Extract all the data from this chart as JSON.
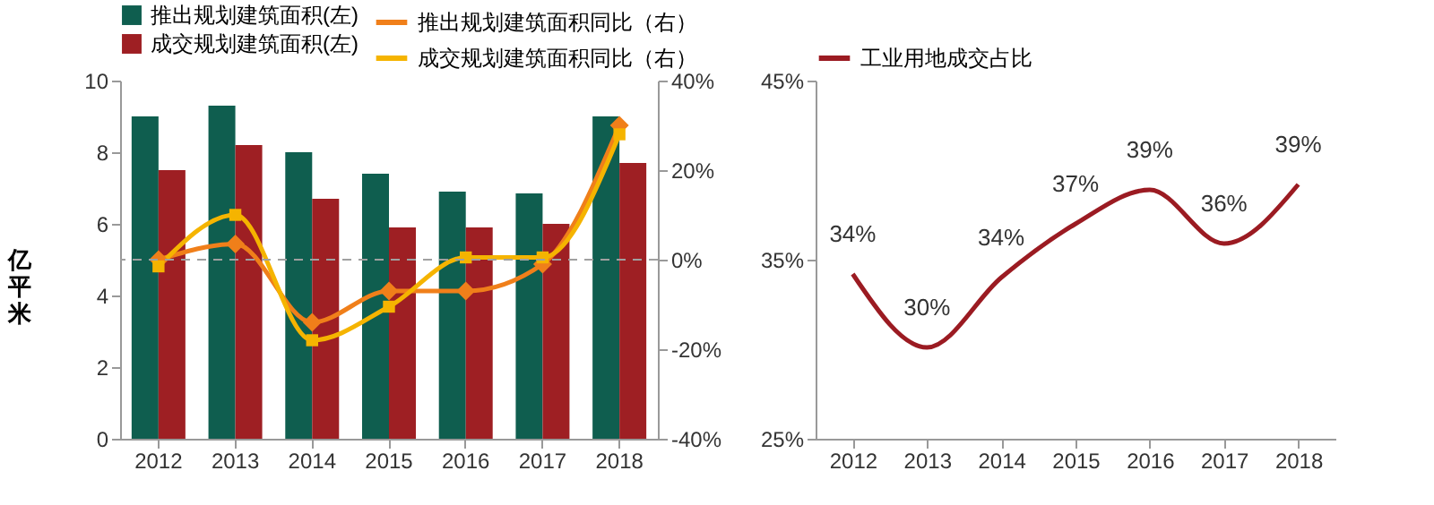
{
  "chart_data": [
    {
      "type": "bar",
      "categories": [
        "2012",
        "2013",
        "2014",
        "2015",
        "2016",
        "2017",
        "2018"
      ],
      "ylabel": "亿平米",
      "ylim": [
        0,
        10
      ],
      "yticks": [
        0,
        2,
        4,
        6,
        8,
        10
      ],
      "y2lim": [
        -40,
        40
      ],
      "y2ticks": [
        {
          "value": -40,
          "label": "-40%"
        },
        {
          "value": -20,
          "label": "-20%"
        },
        {
          "value": 0,
          "label": "0%"
        },
        {
          "value": 20,
          "label": "20%"
        },
        {
          "value": 40,
          "label": "40%"
        }
      ],
      "legend": "top",
      "ref_lines": [
        {
          "axis": "y2",
          "value": 0,
          "line_style": "dashed",
          "color": "#a0a0a0"
        }
      ],
      "series": [
        {
          "name": "推出规划建筑面积(左)",
          "type": "bar",
          "color": "#0f5e4f",
          "values": [
            9.0,
            9.3,
            8.0,
            7.4,
            6.9,
            6.85,
            9.0
          ]
        },
        {
          "name": "成交规划建筑面积(左)",
          "type": "bar",
          "color": "#9e1f23",
          "values": [
            7.5,
            8.2,
            6.7,
            5.9,
            5.9,
            6.0,
            7.7
          ]
        },
        {
          "name": "推出规划建筑面积同比（右）",
          "type": "line",
          "axis": "y2",
          "marker": "diamond",
          "color": "#f07f1a",
          "values": [
            0,
            3.5,
            -14,
            -7,
            -7,
            -1,
            30
          ]
        },
        {
          "name": "成交规划建筑面积同比（右）",
          "type": "line",
          "axis": "y2",
          "marker": "square",
          "color": "#f5b400",
          "values": [
            -1.5,
            10,
            -18,
            -10.5,
            0.5,
            0.5,
            28
          ]
        }
      ]
    },
    {
      "type": "line",
      "categories": [
        "2012",
        "2013",
        "2014",
        "2015",
        "2016",
        "2017",
        "2018"
      ],
      "ylim": [
        25,
        45
      ],
      "yticks": [
        {
          "value": 25,
          "label": "25%"
        },
        {
          "value": 35,
          "label": "35%"
        },
        {
          "value": 45,
          "label": "45%"
        }
      ],
      "legend": "top",
      "series": [
        {
          "name": "工业用地成交占比",
          "color": "#9b1b22",
          "values": [
            34.2,
            30.1,
            34,
            37,
            38.9,
            35.9,
            39.2
          ],
          "value_labels": [
            "34%",
            "30%",
            "34%",
            "37%",
            "39%",
            "36%",
            "39%"
          ]
        }
      ]
    }
  ]
}
